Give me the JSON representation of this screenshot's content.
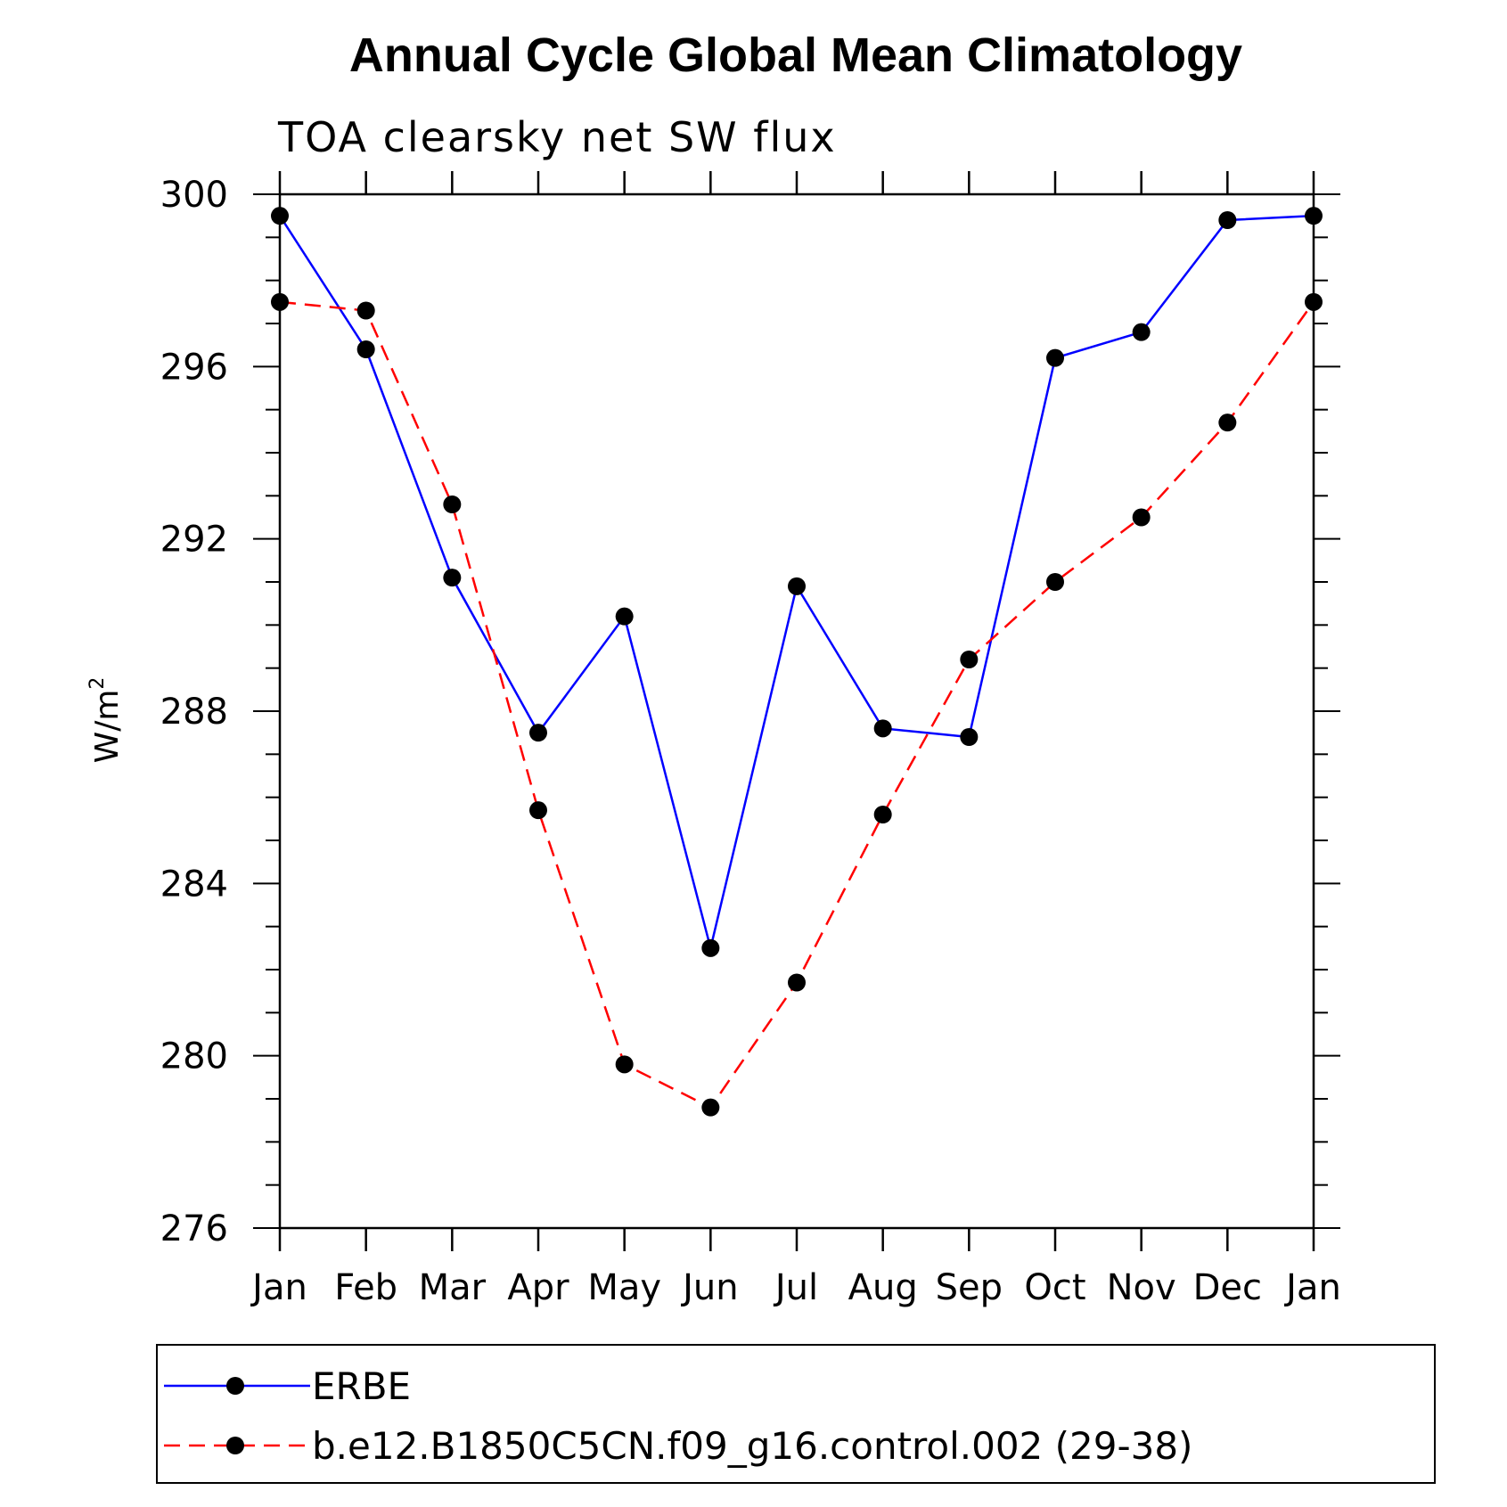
{
  "chart_data": {
    "type": "line",
    "title": "Annual Cycle Global Mean Climatology",
    "subtitle": "TOA clearsky net SW flux",
    "ylabel": "W/m",
    "ylabel_sup": "2",
    "xlabel": "",
    "categories": [
      "Jan",
      "Feb",
      "Mar",
      "Apr",
      "May",
      "Jun",
      "Jul",
      "Aug",
      "Sep",
      "Oct",
      "Nov",
      "Dec",
      "Jan"
    ],
    "ylim": [
      276,
      300
    ],
    "yticks": [
      276,
      280,
      284,
      288,
      292,
      296,
      300
    ],
    "yticks_minor_step": 1,
    "grid": false,
    "legend_position": "bottom",
    "series": [
      {
        "name": "ERBE",
        "color": "#0000ff",
        "style": "solid",
        "marker": "filled-circle",
        "values": [
          299.5,
          296.4,
          291.1,
          287.5,
          290.2,
          282.5,
          290.9,
          287.6,
          287.4,
          296.2,
          296.8,
          299.4,
          299.5
        ]
      },
      {
        "name": "b.e12.B1850C5CN.f09_g16.control.002 (29-38)",
        "color": "#ff0000",
        "style": "dashed",
        "marker": "filled-circle",
        "values": [
          297.5,
          297.3,
          292.8,
          285.7,
          279.8,
          278.8,
          281.7,
          285.6,
          289.2,
          291.0,
          292.5,
          294.7,
          297.5
        ]
      }
    ]
  }
}
